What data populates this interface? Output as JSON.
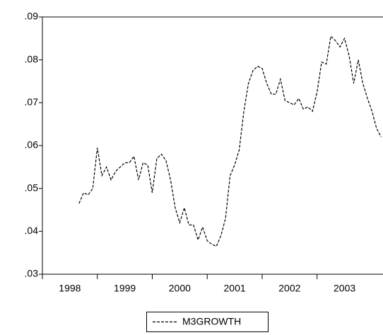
{
  "chart_data": {
    "type": "line",
    "x": [
      1998.667,
      1998.75,
      1998.833,
      1998.917,
      1999.0,
      1999.083,
      1999.167,
      1999.25,
      1999.333,
      1999.417,
      1999.5,
      1999.583,
      1999.667,
      1999.75,
      1999.833,
      1999.917,
      2000.0,
      2000.083,
      2000.167,
      2000.25,
      2000.333,
      2000.417,
      2000.5,
      2000.583,
      2000.667,
      2000.75,
      2000.833,
      2000.917,
      2001.0,
      2001.083,
      2001.167,
      2001.25,
      2001.333,
      2001.417,
      2001.5,
      2001.583,
      2001.667,
      2001.75,
      2001.833,
      2001.917,
      2002.0,
      2002.083,
      2002.167,
      2002.25,
      2002.333,
      2002.417,
      2002.5,
      2002.583,
      2002.667,
      2002.75,
      2002.833,
      2002.917,
      2003.0,
      2003.083,
      2003.167,
      2003.25,
      2003.333,
      2003.417,
      2003.5,
      2003.583,
      2003.667,
      2003.75,
      2003.833,
      2003.917,
      2004.0,
      2004.083,
      2004.167
    ],
    "series": [
      {
        "name": "M3GROWTH",
        "color": "#000000",
        "values": [
          0.0465,
          0.049,
          0.0485,
          0.05,
          0.0595,
          0.053,
          0.055,
          0.052,
          0.054,
          0.055,
          0.056,
          0.056,
          0.0575,
          0.052,
          0.056,
          0.0555,
          0.049,
          0.057,
          0.058,
          0.0565,
          0.052,
          0.0455,
          0.042,
          0.0455,
          0.0415,
          0.0415,
          0.038,
          0.041,
          0.0378,
          0.037,
          0.0365,
          0.039,
          0.043,
          0.053,
          0.0555,
          0.059,
          0.068,
          0.0745,
          0.0775,
          0.0785,
          0.078,
          0.0745,
          0.072,
          0.072,
          0.0755,
          0.0705,
          0.07,
          0.0695,
          0.071,
          0.0685,
          0.069,
          0.068,
          0.0725,
          0.0795,
          0.079,
          0.0855,
          0.0845,
          0.083,
          0.085,
          0.081,
          0.0745,
          0.08,
          0.0745,
          0.071,
          0.068,
          0.064,
          0.062
        ]
      }
    ],
    "xlim": [
      1998,
      2004.2
    ],
    "xticks": [
      {
        "value": 1998.5,
        "label": "1998"
      },
      {
        "value": 1999.5,
        "label": "1999"
      },
      {
        "value": 2000.5,
        "label": "2000"
      },
      {
        "value": 2001.5,
        "label": "2001"
      },
      {
        "value": 2002.5,
        "label": "2002"
      },
      {
        "value": 2003.5,
        "label": "2003"
      }
    ],
    "ylim": [
      0.03,
      0.09
    ],
    "yticks": [
      {
        "value": 0.03,
        "label": ".03"
      },
      {
        "value": 0.04,
        "label": ".04"
      },
      {
        "value": 0.05,
        "label": ".05"
      },
      {
        "value": 0.06,
        "label": ".06"
      },
      {
        "value": 0.07,
        "label": ".07"
      },
      {
        "value": 0.08,
        "label": ".08"
      },
      {
        "value": 0.09,
        "label": ".09"
      }
    ],
    "dashed": true
  }
}
